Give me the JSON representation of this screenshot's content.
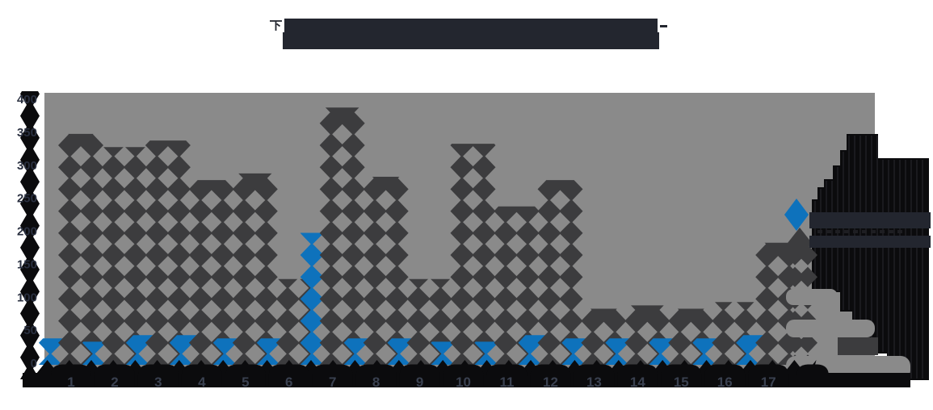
{
  "title": {
    "prefix": "下",
    "suffix_dash": "-",
    "note": "two-line CJK title rendered as solid glyph blocks in source image",
    "color": "#23262F"
  },
  "colors": {
    "page_bg": "#FFFFFF",
    "plot_bg": "#8A8A8A",
    "bar_dark": "#3C3C3E",
    "bar_blue": "#0E72BC",
    "axis_black": "#0B0B0D",
    "navy_text_block": "#23262F",
    "y_label": "#2A3040",
    "x_label": "#3A4150",
    "mass_stripe": "#1E1E22"
  },
  "y_axis": {
    "ticks": [
      "400",
      "350",
      "300",
      "250",
      "200",
      "150",
      "100",
      "50",
      "0"
    ],
    "min": 0,
    "max": 400,
    "step": 50
  },
  "x_axis": {
    "labels": [
      "1",
      "2",
      "3",
      "4",
      "5",
      "6",
      "7",
      "8",
      "9",
      "10",
      "11",
      "12",
      "13",
      "14",
      "15",
      "16",
      "17"
    ]
  },
  "legend": {
    "position": "right",
    "entries": [
      {
        "marker": "diamond",
        "marker_color": "#0E72BC",
        "label_illegible_block": true
      },
      {
        "marker": "diamond",
        "marker_color": "#3C3C3E",
        "label_illegible_block": true
      }
    ]
  },
  "chart_data": {
    "type": "bar",
    "categories": [
      "1",
      "2",
      "3",
      "4",
      "5",
      "6",
      "7",
      "8",
      "9",
      "10",
      "11",
      "12",
      "13",
      "14",
      "15",
      "16",
      "17"
    ],
    "series": [
      {
        "name": "series-blue",
        "color": "#0E72BC",
        "values": [
          40,
          35,
          45,
          45,
          40,
          40,
          200,
          40,
          40,
          35,
          35,
          45,
          40,
          40,
          40,
          40,
          45
        ]
      },
      {
        "name": "series-dark",
        "color": "#3C3C3E",
        "values": [
          350,
          330,
          340,
          280,
          290,
          130,
          390,
          285,
          130,
          335,
          240,
          280,
          85,
          90,
          85,
          95,
          185
        ]
      }
    ],
    "ylabel": "",
    "xlabel": "",
    "ylim": [
      0,
      400
    ],
    "grid": false,
    "legend_position": "right",
    "bar_fill_style": "stacked-diamond pattern",
    "plot_bg": "#8A8A8A"
  }
}
